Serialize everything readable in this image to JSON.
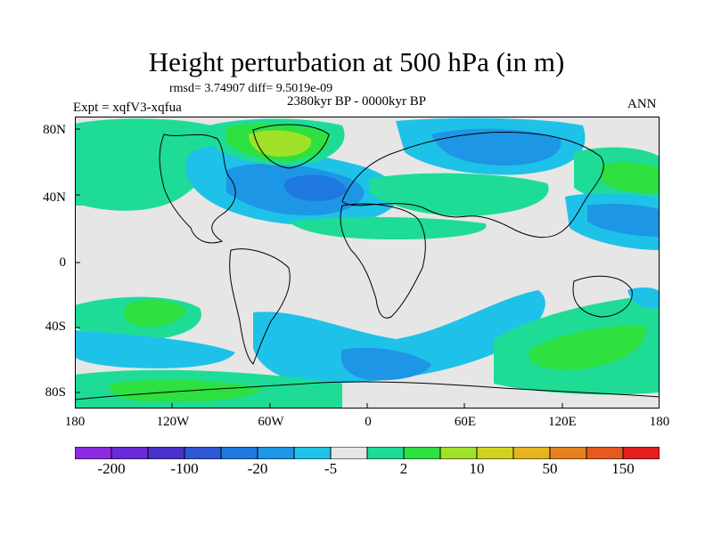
{
  "title": "Height perturbation at 500 hPa (in m)",
  "stats": "rmsd= 3.74907 diff= 9.5019e-09",
  "period": "2380kyr BP - 0000kyr BP",
  "experiment": "Expt = xqfV3-xqfua",
  "season": "ANN",
  "lat_labels": [
    "80N",
    "40N",
    "0",
    "40S",
    "80S"
  ],
  "lon_labels": [
    "180",
    "120W",
    "60W",
    "0",
    "60E",
    "120E",
    "180"
  ],
  "colorbar": {
    "colors": [
      "#8a2be2",
      "#6a2ad8",
      "#4a30cc",
      "#2e58d8",
      "#1e78e0",
      "#1e96e6",
      "#1ec2e8",
      "#e6e6e6",
      "#1edc96",
      "#2ee040",
      "#a0e22a",
      "#d2d21e",
      "#e6b41e",
      "#e6821e",
      "#e65a1e",
      "#e61e1e"
    ],
    "labels": [
      "-200",
      "-100",
      "-20",
      "-5",
      "2",
      "10",
      "50",
      "150"
    ]
  },
  "fields": {
    "neutral": "#e6e6e6",
    "light_blue": "#1ec2e8",
    "mid_blue": "#1e96e6",
    "blue": "#1e78e0",
    "green": "#1edc96",
    "lime": "#2ee040",
    "yellow_green": "#a0e22a"
  }
}
